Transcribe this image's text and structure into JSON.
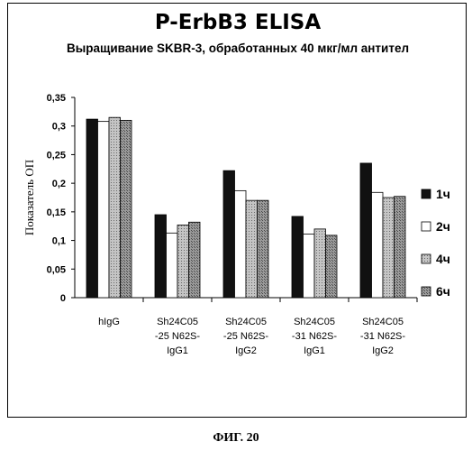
{
  "figure": {
    "caption": "ФИГ. 20"
  },
  "chart_data": {
    "type": "bar",
    "title": "P-ErbB3 ELISA",
    "subtitle": "Выращивание SKBR-3, обработанных 40 мкг/мл антител",
    "ylabel": "Показатель ОП",
    "xlabel": "",
    "ylim": [
      0,
      0.35
    ],
    "yticks": [
      "0",
      "0,05",
      "0,1",
      "0,15",
      "0,2",
      "0,25",
      "0,3",
      "0,35"
    ],
    "grid": false,
    "legend_position": "right",
    "categories": [
      [
        "hIgG"
      ],
      [
        "Sh24C05",
        "-25 N62S-",
        "IgG1"
      ],
      [
        "Sh24C05",
        "-25 N62S-",
        "IgG2"
      ],
      [
        "Sh24C05",
        "-31 N62S-",
        "IgG1"
      ],
      [
        "Sh24C05",
        "-31 N62S-",
        "IgG2"
      ]
    ],
    "series": [
      {
        "name": "1ч",
        "values": [
          0.312,
          0.145,
          0.222,
          0.142,
          0.235
        ]
      },
      {
        "name": "2ч",
        "values": [
          0.308,
          0.113,
          0.187,
          0.111,
          0.184
        ]
      },
      {
        "name": "4ч",
        "values": [
          0.315,
          0.127,
          0.17,
          0.12,
          0.175
        ]
      },
      {
        "name": "6ч",
        "values": [
          0.31,
          0.132,
          0.17,
          0.109,
          0.177
        ]
      }
    ],
    "series_colors": [
      "#111111",
      "#ffffff",
      "#bdbdbd",
      "#8c8c8c"
    ],
    "series_patterns": [
      "solid",
      "solid",
      "dots",
      "hatch"
    ]
  }
}
